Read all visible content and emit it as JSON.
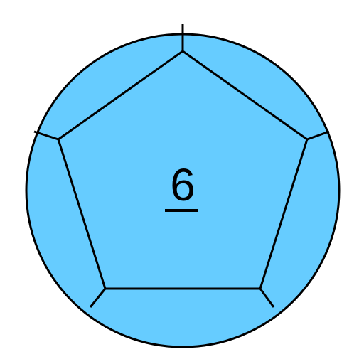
{
  "die": {
    "value": "6",
    "sides": 12,
    "colors": {
      "fill": "#66ccff",
      "edge": "#000000",
      "background": "#ffffff"
    }
  }
}
